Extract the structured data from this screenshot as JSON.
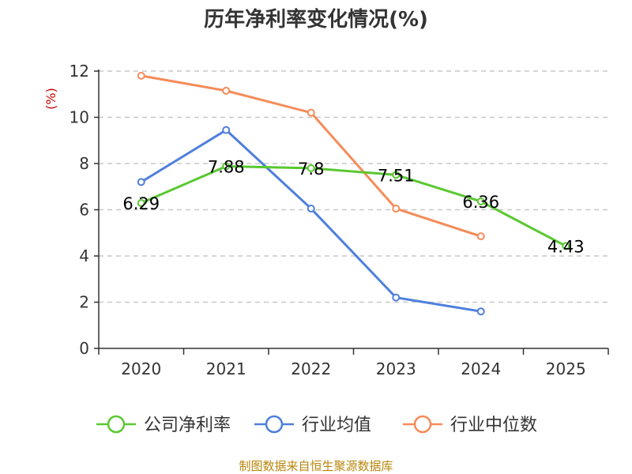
{
  "chart_data": {
    "type": "line",
    "title": "历年净利率变化情况(%)",
    "ylabel": "(%)",
    "xlabel": "",
    "categories": [
      "2020",
      "2021",
      "2022",
      "2023",
      "2024",
      "2025"
    ],
    "ylim": [
      0,
      12
    ],
    "yticks": [
      0,
      2,
      4,
      6,
      8,
      10,
      12
    ],
    "grid": true,
    "legend_position": "bottom",
    "series": [
      {
        "name": "公司净利率",
        "color": "#5ac832",
        "values": [
          6.29,
          7.88,
          7.8,
          7.51,
          6.36,
          4.43
        ],
        "labels": [
          "6.29",
          "7.88",
          "7.8",
          "7.51",
          "6.36",
          "4.43"
        ]
      },
      {
        "name": "行业均值",
        "color": "#4e7fdc",
        "values": [
          7.2,
          9.45,
          6.05,
          2.2,
          1.6,
          null
        ]
      },
      {
        "name": "行业中位数",
        "color": "#f58c5a",
        "values": [
          11.8,
          11.15,
          10.2,
          6.05,
          4.85,
          null
        ]
      }
    ],
    "source": "制图数据来自恒生聚源数据库"
  }
}
